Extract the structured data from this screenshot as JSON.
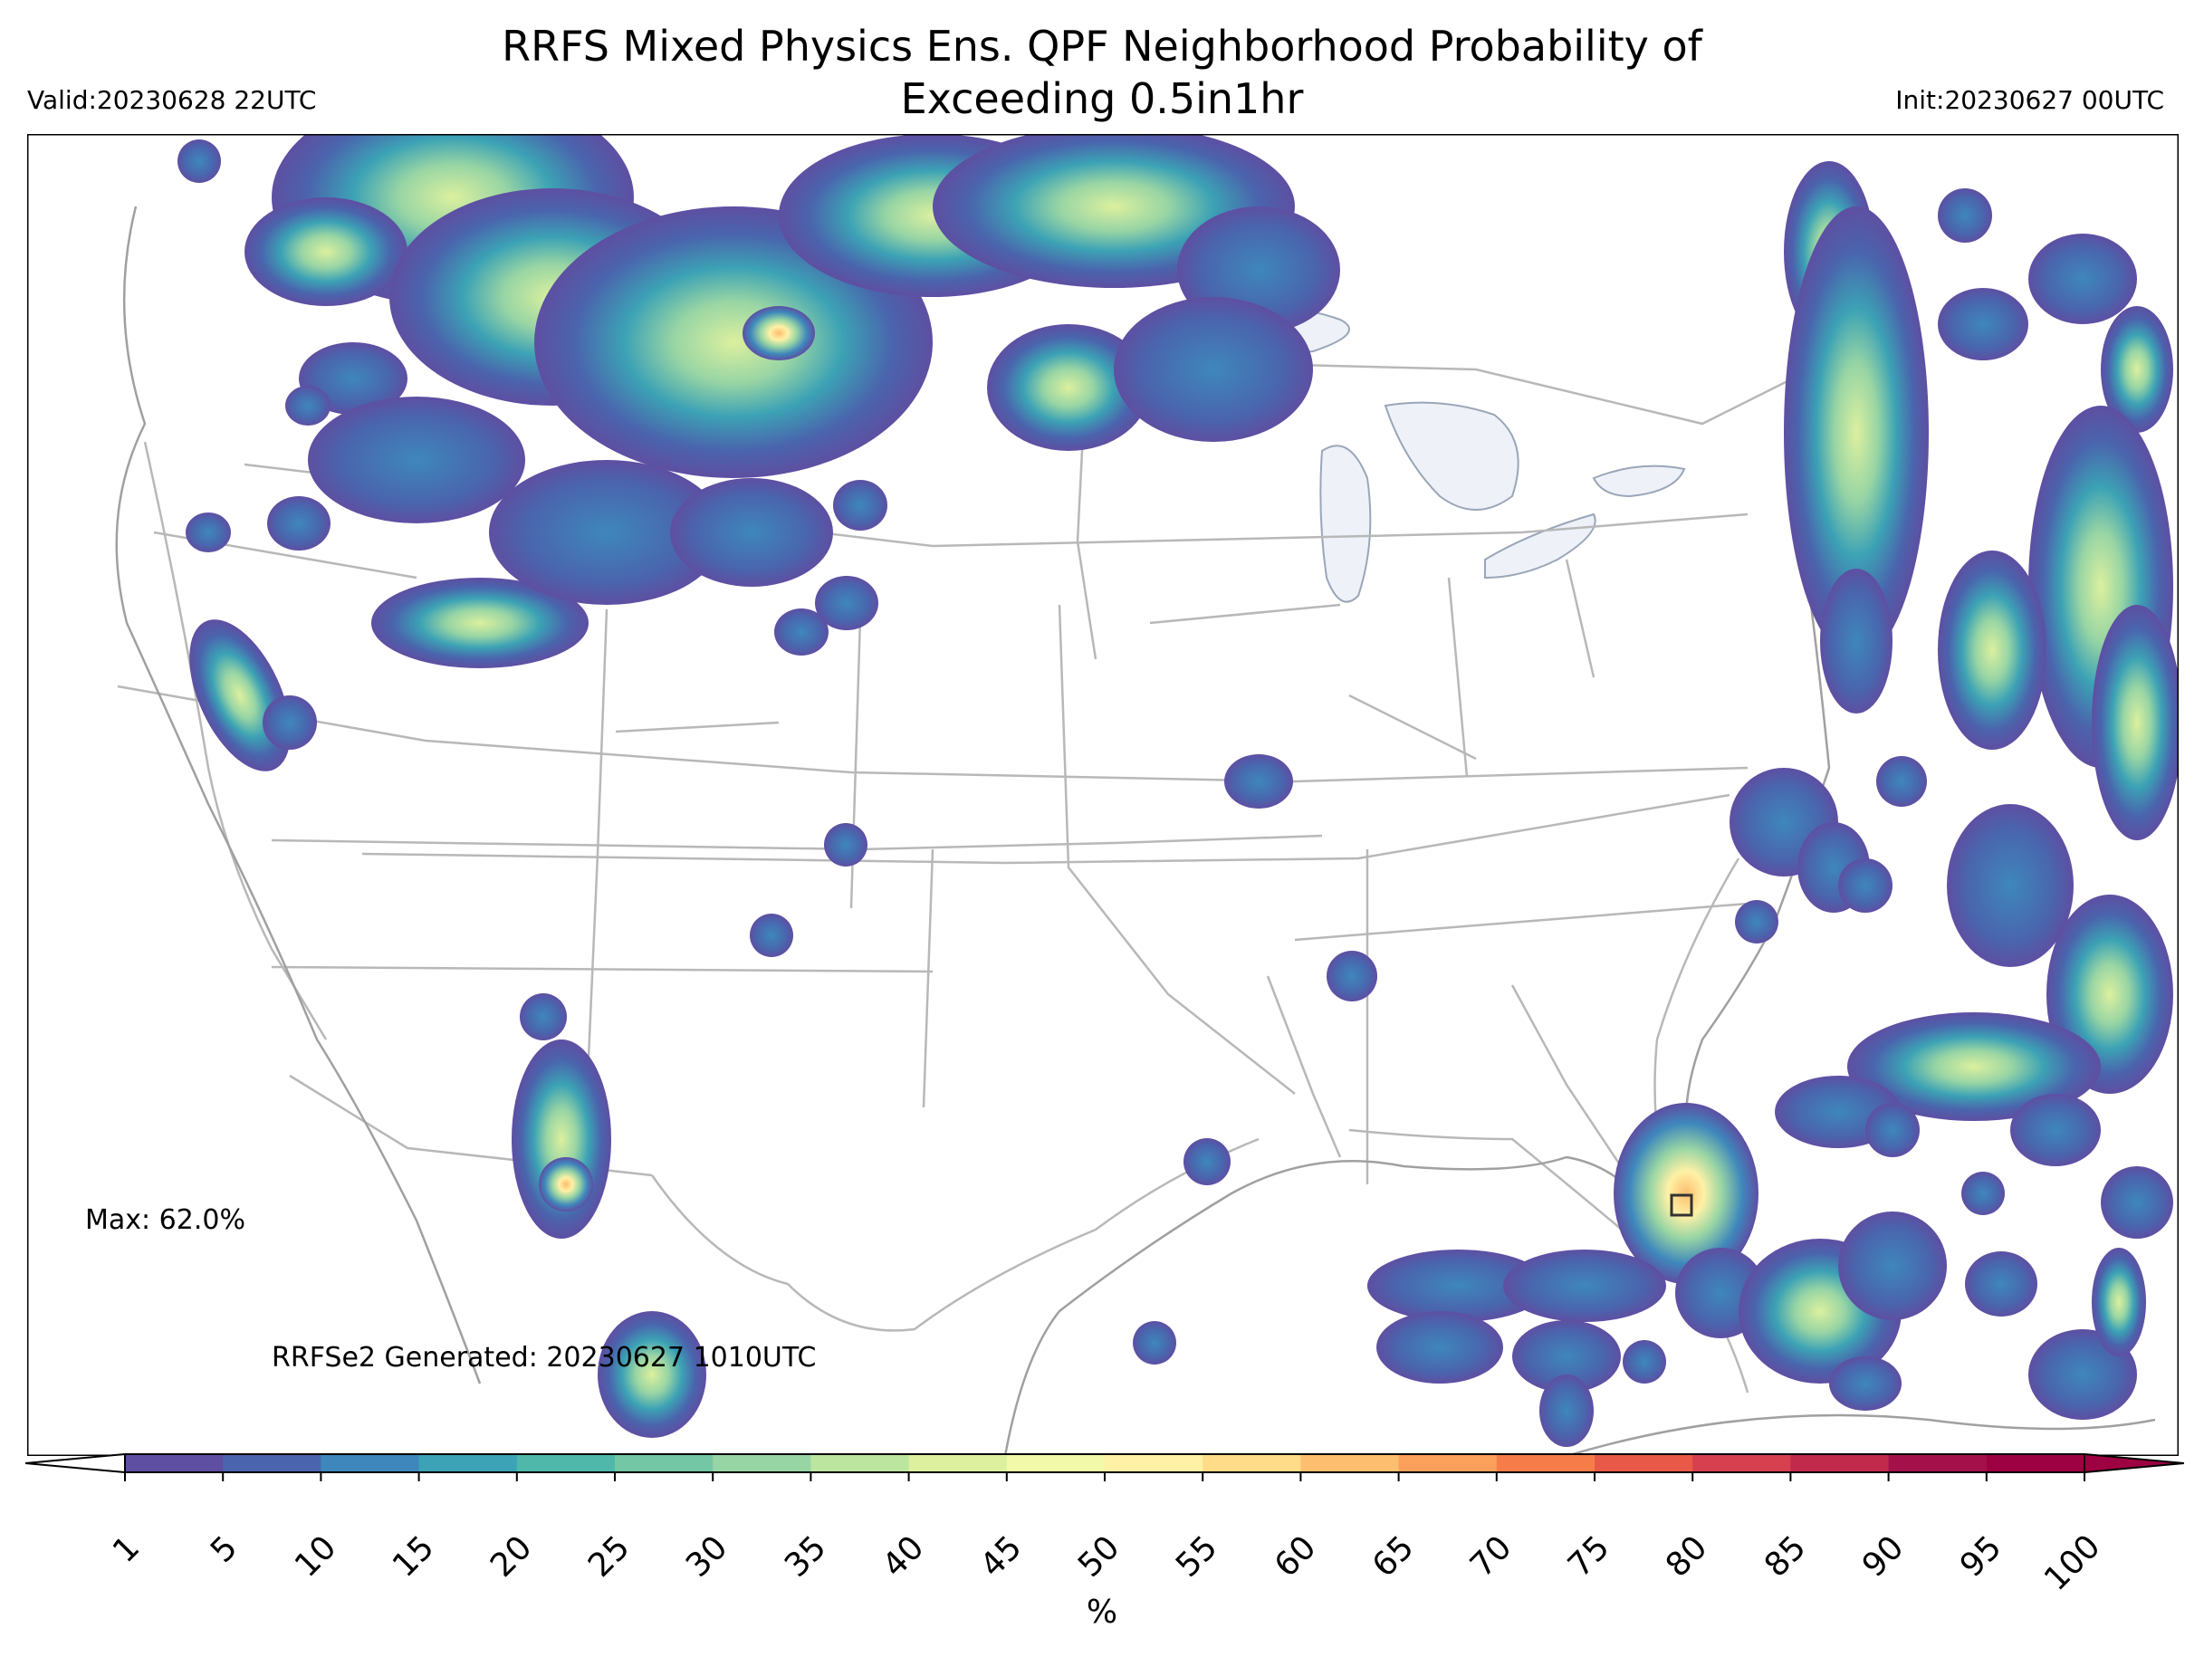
{
  "title_line1": "RRFS Mixed Physics Ens. QPF Neighborhood Probability of",
  "title_line2": "Exceeding 0.5in1hr",
  "valid": "Valid:20230628 22UTC",
  "init": "Init:20230627 00UTC",
  "max_label": "Max: 62.0%",
  "generated": "RRFSe2 Generated: 20230627 1010UTC",
  "colorbar": {
    "ticks": [
      "1",
      "5",
      "10",
      "15",
      "20",
      "25",
      "30",
      "35",
      "40",
      "45",
      "50",
      "55",
      "60",
      "65",
      "70",
      "75",
      "80",
      "85",
      "90",
      "95",
      "100"
    ],
    "colors": [
      "#5e4fa2",
      "#4a64ad",
      "#3e87bc",
      "#3ca2b5",
      "#4fb8ab",
      "#74c7a5",
      "#98d5a4",
      "#bce5a0",
      "#dcf09e",
      "#f2f9a9",
      "#fef1a6",
      "#fedc88",
      "#fdbe6f",
      "#fba05b",
      "#f67d4a",
      "#e85a47",
      "#d6404e",
      "#c12a4b",
      "#a4114a",
      "#9e0142"
    ],
    "unit": "%"
  },
  "colors": {
    "state_lines": "#b8b8b8",
    "lakes": "#eef2f8",
    "frame": "#000000"
  }
}
